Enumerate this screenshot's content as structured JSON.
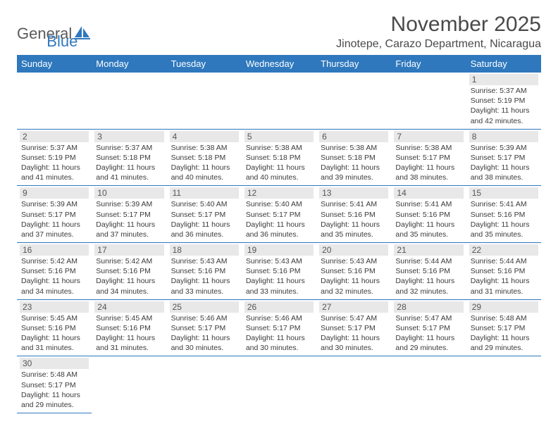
{
  "logo": {
    "text1": "General",
    "text2": "Blue",
    "colors": {
      "gray": "#5a5a5a",
      "blue": "#2f78bd"
    }
  },
  "header": {
    "month_title": "November 2025",
    "location": "Jinotepe, Carazo Department, Nicaragua"
  },
  "colors": {
    "header_bg": "#2f78bd",
    "header_fg": "#ffffff",
    "daynum_bg": "#e8e8e8",
    "border": "#2f78bd",
    "text": "#3a3a3a"
  },
  "weekdays": [
    "Sunday",
    "Monday",
    "Tuesday",
    "Wednesday",
    "Thursday",
    "Friday",
    "Saturday"
  ],
  "grid": {
    "first_weekday_index": 6,
    "days_in_month": 30
  },
  "days": {
    "1": {
      "sunrise": "5:37 AM",
      "sunset": "5:19 PM",
      "daylight": "11 hours and 42 minutes."
    },
    "2": {
      "sunrise": "5:37 AM",
      "sunset": "5:19 PM",
      "daylight": "11 hours and 41 minutes."
    },
    "3": {
      "sunrise": "5:37 AM",
      "sunset": "5:18 PM",
      "daylight": "11 hours and 41 minutes."
    },
    "4": {
      "sunrise": "5:38 AM",
      "sunset": "5:18 PM",
      "daylight": "11 hours and 40 minutes."
    },
    "5": {
      "sunrise": "5:38 AM",
      "sunset": "5:18 PM",
      "daylight": "11 hours and 40 minutes."
    },
    "6": {
      "sunrise": "5:38 AM",
      "sunset": "5:18 PM",
      "daylight": "11 hours and 39 minutes."
    },
    "7": {
      "sunrise": "5:38 AM",
      "sunset": "5:17 PM",
      "daylight": "11 hours and 38 minutes."
    },
    "8": {
      "sunrise": "5:39 AM",
      "sunset": "5:17 PM",
      "daylight": "11 hours and 38 minutes."
    },
    "9": {
      "sunrise": "5:39 AM",
      "sunset": "5:17 PM",
      "daylight": "11 hours and 37 minutes."
    },
    "10": {
      "sunrise": "5:39 AM",
      "sunset": "5:17 PM",
      "daylight": "11 hours and 37 minutes."
    },
    "11": {
      "sunrise": "5:40 AM",
      "sunset": "5:17 PM",
      "daylight": "11 hours and 36 minutes."
    },
    "12": {
      "sunrise": "5:40 AM",
      "sunset": "5:17 PM",
      "daylight": "11 hours and 36 minutes."
    },
    "13": {
      "sunrise": "5:41 AM",
      "sunset": "5:16 PM",
      "daylight": "11 hours and 35 minutes."
    },
    "14": {
      "sunrise": "5:41 AM",
      "sunset": "5:16 PM",
      "daylight": "11 hours and 35 minutes."
    },
    "15": {
      "sunrise": "5:41 AM",
      "sunset": "5:16 PM",
      "daylight": "11 hours and 35 minutes."
    },
    "16": {
      "sunrise": "5:42 AM",
      "sunset": "5:16 PM",
      "daylight": "11 hours and 34 minutes."
    },
    "17": {
      "sunrise": "5:42 AM",
      "sunset": "5:16 PM",
      "daylight": "11 hours and 34 minutes."
    },
    "18": {
      "sunrise": "5:43 AM",
      "sunset": "5:16 PM",
      "daylight": "11 hours and 33 minutes."
    },
    "19": {
      "sunrise": "5:43 AM",
      "sunset": "5:16 PM",
      "daylight": "11 hours and 33 minutes."
    },
    "20": {
      "sunrise": "5:43 AM",
      "sunset": "5:16 PM",
      "daylight": "11 hours and 32 minutes."
    },
    "21": {
      "sunrise": "5:44 AM",
      "sunset": "5:16 PM",
      "daylight": "11 hours and 32 minutes."
    },
    "22": {
      "sunrise": "5:44 AM",
      "sunset": "5:16 PM",
      "daylight": "11 hours and 31 minutes."
    },
    "23": {
      "sunrise": "5:45 AM",
      "sunset": "5:16 PM",
      "daylight": "11 hours and 31 minutes."
    },
    "24": {
      "sunrise": "5:45 AM",
      "sunset": "5:16 PM",
      "daylight": "11 hours and 31 minutes."
    },
    "25": {
      "sunrise": "5:46 AM",
      "sunset": "5:17 PM",
      "daylight": "11 hours and 30 minutes."
    },
    "26": {
      "sunrise": "5:46 AM",
      "sunset": "5:17 PM",
      "daylight": "11 hours and 30 minutes."
    },
    "27": {
      "sunrise": "5:47 AM",
      "sunset": "5:17 PM",
      "daylight": "11 hours and 30 minutes."
    },
    "28": {
      "sunrise": "5:47 AM",
      "sunset": "5:17 PM",
      "daylight": "11 hours and 29 minutes."
    },
    "29": {
      "sunrise": "5:48 AM",
      "sunset": "5:17 PM",
      "daylight": "11 hours and 29 minutes."
    },
    "30": {
      "sunrise": "5:48 AM",
      "sunset": "5:17 PM",
      "daylight": "11 hours and 29 minutes."
    }
  },
  "labels": {
    "sunrise_prefix": "Sunrise: ",
    "sunset_prefix": "Sunset: ",
    "daylight_prefix": "Daylight: "
  }
}
